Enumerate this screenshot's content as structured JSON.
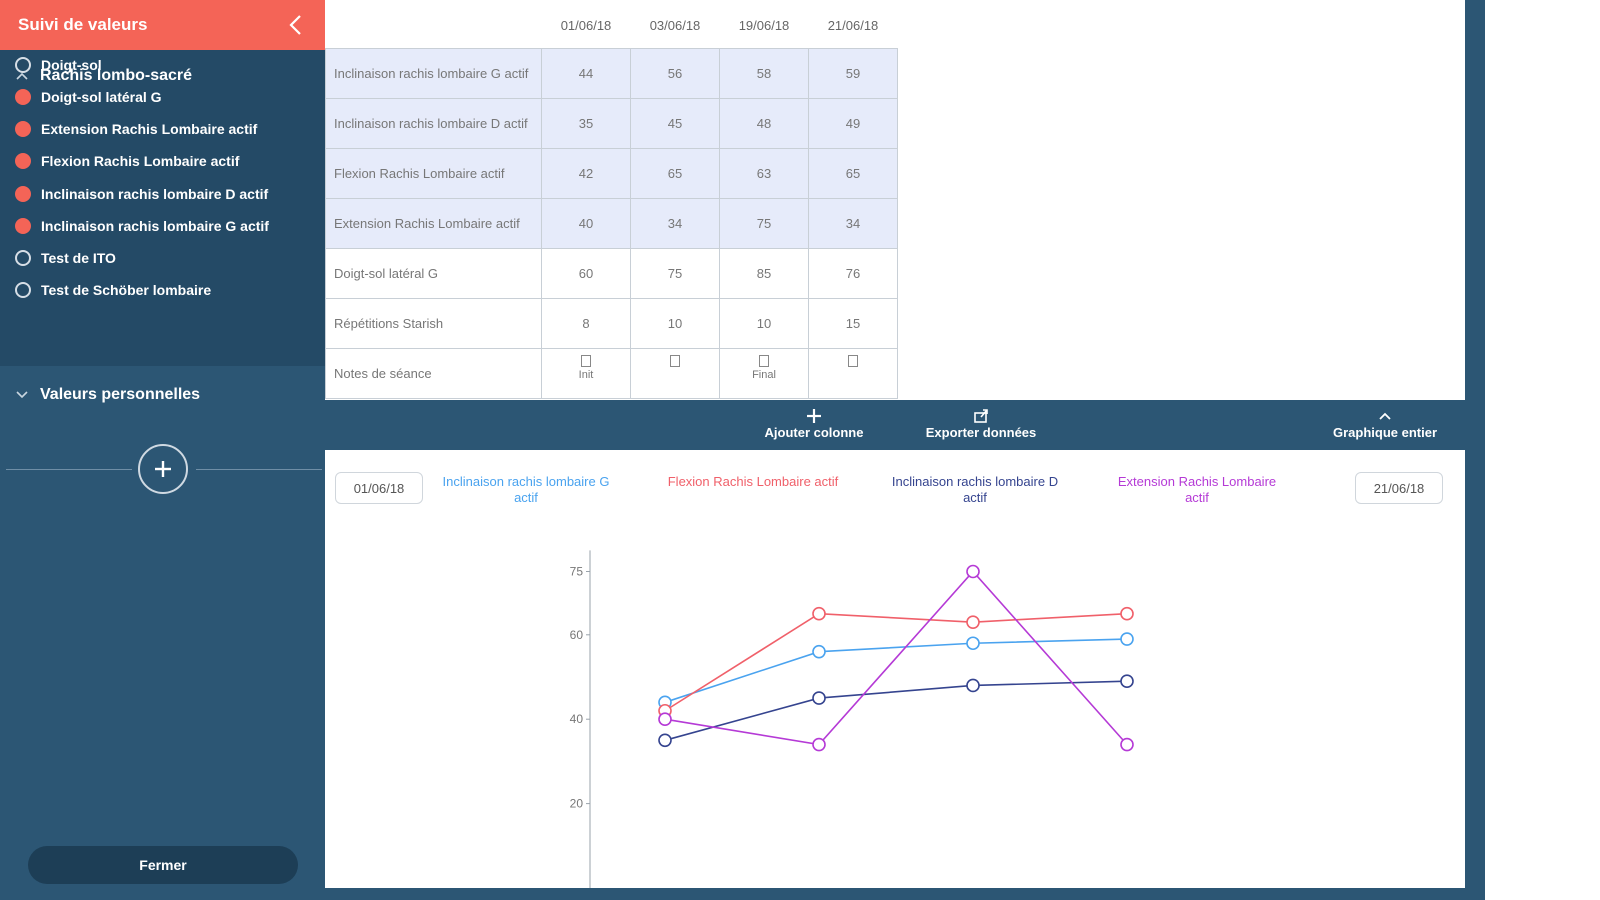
{
  "sidebar": {
    "title": "Suivi de valeurs",
    "group1": {
      "title": "Rachis lombo-sacré",
      "items": [
        {
          "label": "Doigt-sol",
          "selected": false
        },
        {
          "label": "Doigt-sol latéral G",
          "selected": true
        },
        {
          "label": "Extension Rachis Lombaire actif",
          "selected": true
        },
        {
          "label": "Flexion Rachis Lombaire actif",
          "selected": true
        },
        {
          "label": "Inclinaison rachis lombaire D actif",
          "selected": true
        },
        {
          "label": "Inclinaison rachis lombaire G actif",
          "selected": true
        },
        {
          "label": "Test de ITO",
          "selected": false
        },
        {
          "label": "Test de Schöber lombaire",
          "selected": false
        }
      ]
    },
    "group2": {
      "title": "Valeurs personnelles"
    },
    "close_label": "Fermer"
  },
  "table": {
    "dates": [
      "01/06/18",
      "03/06/18",
      "19/06/18",
      "21/06/18"
    ],
    "rows": [
      {
        "label": "Inclinaison rachis lombaire G actif",
        "values": [
          "44",
          "56",
          "58",
          "59"
        ],
        "highlight": true
      },
      {
        "label": "Inclinaison rachis lombaire D actif",
        "values": [
          "35",
          "45",
          "48",
          "49"
        ],
        "highlight": true
      },
      {
        "label": "Flexion Rachis Lombaire actif",
        "values": [
          "42",
          "65",
          "63",
          "65"
        ],
        "highlight": true
      },
      {
        "label": "Extension Rachis Lombaire actif",
        "values": [
          "40",
          "34",
          "75",
          "34"
        ],
        "highlight": true
      },
      {
        "label": "Doigt-sol latéral G",
        "values": [
          "60",
          "75",
          "85",
          "76"
        ],
        "highlight": false
      },
      {
        "label": "Répétitions Starish",
        "values": [
          "8",
          "10",
          "10",
          "15"
        ],
        "highlight": false
      }
    ],
    "notes": {
      "label": "Notes de séance",
      "values": [
        "Init",
        "",
        "Final",
        ""
      ]
    }
  },
  "toolbar": {
    "add_column": "Ajouter colonne",
    "export": "Exporter données",
    "full_chart": "Graphique entier"
  },
  "chart_controls": {
    "start_date": "01/06/18",
    "end_date": "21/06/18"
  },
  "chart_data": {
    "type": "line",
    "x": [
      "01/06/18",
      "03/06/18",
      "19/06/18",
      "21/06/18"
    ],
    "ylim": [
      0,
      80
    ],
    "yticks": [
      20,
      40,
      60,
      75
    ],
    "series": [
      {
        "name": "Inclinaison rachis lombaire G actif",
        "color": "#4aa3ef",
        "values": [
          44,
          56,
          58,
          59
        ]
      },
      {
        "name": "Flexion Rachis Lombaire actif",
        "color": "#f0606a",
        "values": [
          42,
          65,
          63,
          65
        ]
      },
      {
        "name": "Inclinaison rachis lombaire D actif",
        "color": "#35448f",
        "values": [
          35,
          45,
          48,
          49
        ]
      },
      {
        "name": "Extension Rachis Lombaire actif",
        "color": "#b53ad6",
        "values": [
          40,
          34,
          75,
          34
        ]
      }
    ]
  }
}
